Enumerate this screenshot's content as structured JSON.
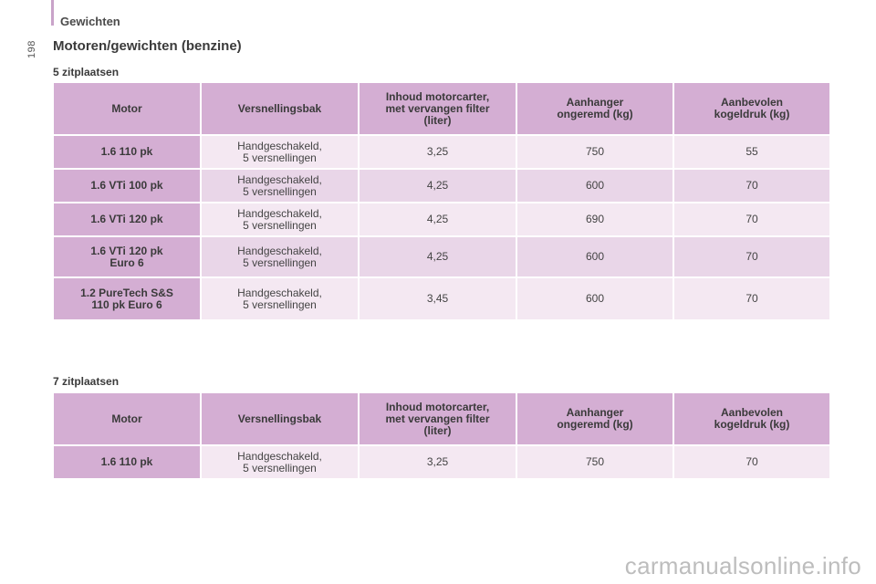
{
  "header": {
    "section": "Gewichten",
    "page_number": "198"
  },
  "title": "Motoren/gewichten (benzine)",
  "headers": [
    "Motor",
    "Versnellingsbak",
    "Inhoud motorcarter,\nmet vervangen filter\n(liter)",
    "Aanhanger\nongeremd (kg)",
    "Aanbevolen\nkogeldruk (kg)"
  ],
  "table_5": {
    "label": "5 zitplaatsen",
    "rows": [
      [
        "1.6 110 pk",
        "Handgeschakeld,\n5 versnellingen",
        "3,25",
        "750",
        "55"
      ],
      [
        "1.6 VTi 100 pk",
        "Handgeschakeld,\n5 versnellingen",
        "4,25",
        "600",
        "70"
      ],
      [
        "1.6 VTi 120 pk",
        "Handgeschakeld,\n5 versnellingen",
        "4,25",
        "690",
        "70"
      ],
      [
        "1.6 VTi 120 pk\nEuro 6",
        "Handgeschakeld,\n5 versnellingen",
        "4,25",
        "600",
        "70"
      ],
      [
        "1.2 PureTech S&S\n110 pk Euro 6",
        "Handgeschakeld,\n5 versnellingen",
        "3,45",
        "600",
        "70"
      ]
    ]
  },
  "table_7": {
    "label": "7 zitplaatsen",
    "rows": [
      [
        "1.6 110 pk",
        "Handgeschakeld,\n5 versnellingen",
        "3,25",
        "750",
        "70"
      ]
    ]
  },
  "watermark": "carmanualsonline.info"
}
